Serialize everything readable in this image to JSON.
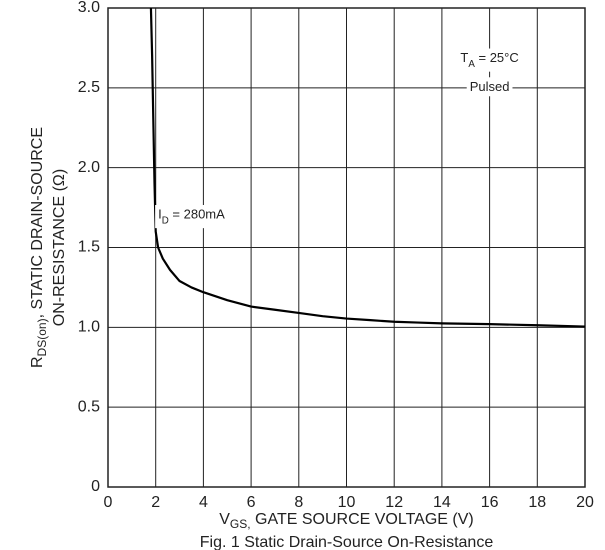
{
  "chart_data": {
    "type": "line",
    "caption": "Fig. 1 Static Drain-Source On-Resistance",
    "ylabel": {
      "main": "R",
      "sub": "DS(on)",
      "rest": ", STATIC DRAIN-SOURCE",
      "line2": "ON-RESISTANCE (Ω)"
    },
    "xlabel": {
      "main": "V",
      "sub": "GS,",
      "rest": " GATE SOURCE VOLTAGE (V)"
    },
    "annotations": [
      {
        "main": "T",
        "sub": "A",
        "rest": " = 25°C",
        "x": 16,
        "y": 2.68
      },
      {
        "main": "Pulsed",
        "sub": "",
        "rest": "",
        "x": 16,
        "y": 2.5
      },
      {
        "main": "I",
        "sub": "D",
        "rest": " = 280mA",
        "x": 3.5,
        "y": 1.7
      }
    ],
    "series": [
      {
        "name": "I_D = 280mA",
        "color": "#000000",
        "x": [
          1.8,
          1.85,
          1.9,
          1.95,
          2.0,
          2.1,
          2.3,
          2.6,
          3.0,
          3.5,
          4.0,
          5.0,
          6.0,
          7.0,
          8.0,
          9.0,
          10.0,
          11.0,
          12.0,
          13.0,
          14.0,
          16.0,
          18.0,
          20.0
        ],
        "values": [
          3.0,
          2.7,
          2.3,
          1.9,
          1.6,
          1.5,
          1.43,
          1.36,
          1.29,
          1.25,
          1.22,
          1.17,
          1.13,
          1.11,
          1.09,
          1.07,
          1.055,
          1.045,
          1.035,
          1.03,
          1.025,
          1.02,
          1.013,
          1.005
        ]
      }
    ],
    "xlim": [
      0,
      20
    ],
    "ylim": [
      0,
      3
    ],
    "xticks": [
      0,
      2,
      4,
      6,
      8,
      10,
      12,
      14,
      16,
      18,
      20
    ],
    "yticks": [
      0,
      0.5,
      {
        "value": 1,
        "label": "1.0"
      },
      1.5,
      {
        "value": 2,
        "label": "2.0"
      },
      2.5,
      {
        "value": 3,
        "label": "3.0"
      }
    ],
    "grid": true
  }
}
